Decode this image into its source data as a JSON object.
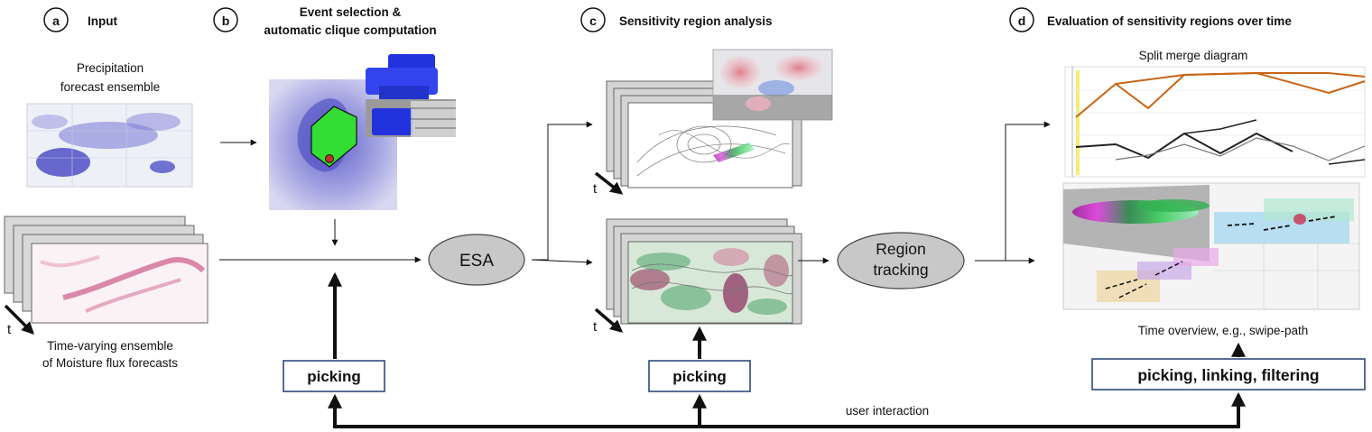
{
  "steps": {
    "a": {
      "letter": "a",
      "title": "Input"
    },
    "b": {
      "letter": "b",
      "title_line1": "Event selection &",
      "title_line2": "automatic clique computation"
    },
    "c": {
      "letter": "c",
      "title": "Sensitivity region analysis"
    },
    "d": {
      "letter": "d",
      "title": "Evaluation of sensitivity regions over time"
    }
  },
  "input": {
    "precip_line1": "Precipitation",
    "precip_line2": "forecast ensemble",
    "moisture_line1": "Time-varying ensemble",
    "moisture_line2": "of Moisture flux forecasts",
    "time_label": "t"
  },
  "analysis": {
    "time_label_top": "t",
    "time_label_bottom": "t"
  },
  "nodes": {
    "esa": "ESA",
    "region_line1": "Region",
    "region_line2": "tracking"
  },
  "evaluation": {
    "split_merge_title": "Split merge diagram",
    "time_overview": "Time overview, e.g., swipe-path"
  },
  "interaction": {
    "picking_b": "picking",
    "picking_c": "picking",
    "picking_d": "picking, linking, filtering",
    "user_interaction": "user interaction"
  },
  "colors": {
    "ellipse_fill": "#c8c8c8",
    "precip_blue": "#3a3ac0",
    "moisture_red": "#c0306a",
    "green_polygon": "#33dd33",
    "orange_line": "#c86414",
    "box_border": "#2e4a7a"
  }
}
